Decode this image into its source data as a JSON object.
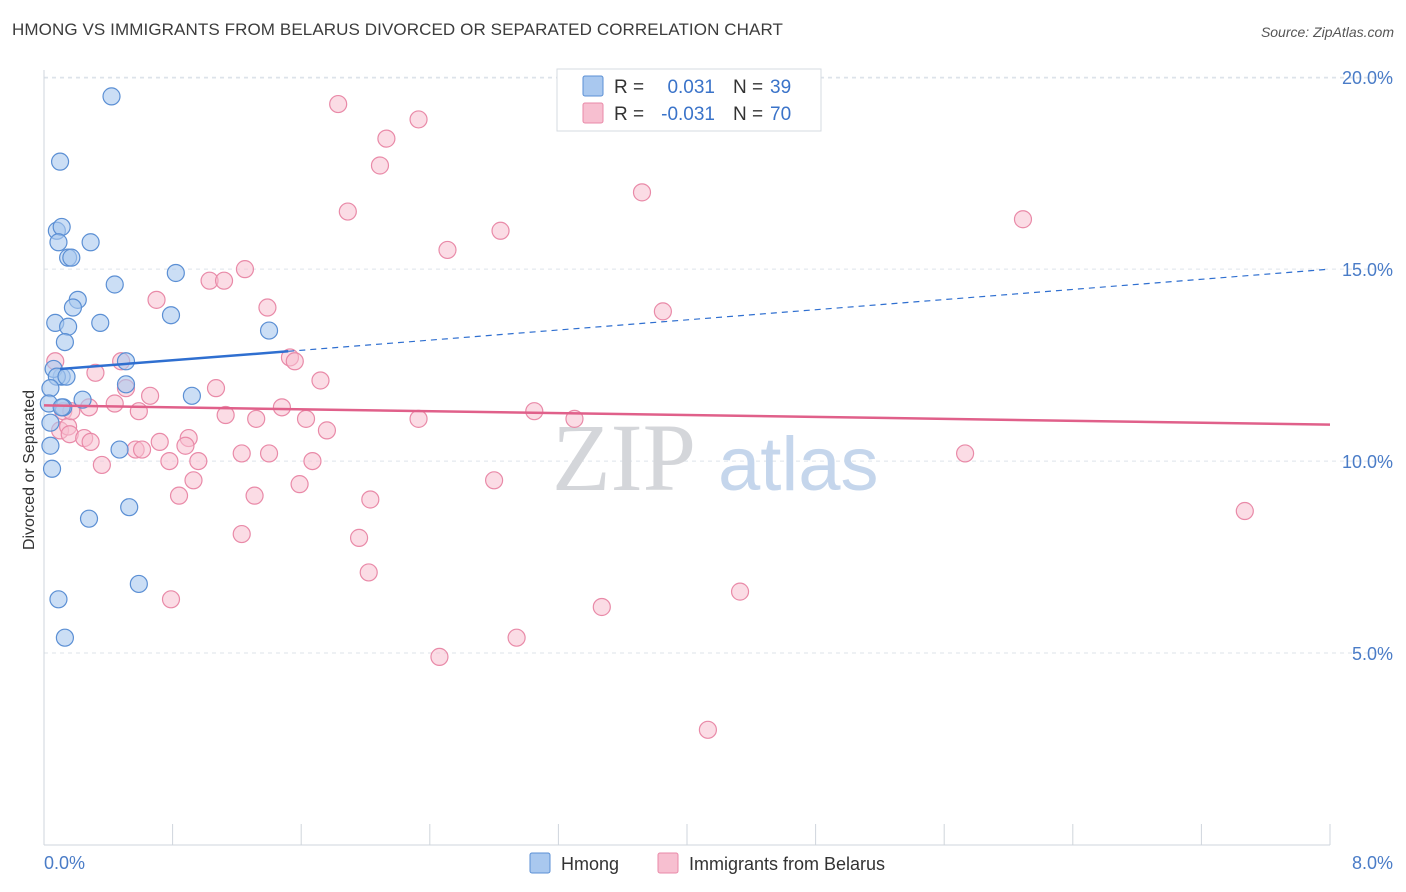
{
  "title": "HMONG VS IMMIGRANTS FROM BELARUS DIVORCED OR SEPARATED CORRELATION CHART",
  "source": "Source: ZipAtlas.com",
  "watermark": {
    "zip": "ZIP",
    "atlas": "atlas"
  },
  "colors": {
    "blue_fill": "#a9c8ef",
    "blue_stroke": "#5b8fd4",
    "blue_line": "#2f6fd0",
    "pink_fill": "#f7bfd0",
    "pink_stroke": "#e98aa8",
    "pink_line": "#e0608a",
    "grid": "#dde3ea",
    "axis_label": "#4a7cc7"
  },
  "legend": {
    "r_label": "R =",
    "n_label": "N =",
    "rows": [
      {
        "r": "0.031",
        "n": "39"
      },
      {
        "r": "-0.031",
        "n": "70"
      }
    ]
  },
  "chart_data": {
    "type": "scatter",
    "title": "HMONG VS IMMIGRANTS FROM BELARUS DIVORCED OR SEPARATED CORRELATION CHART",
    "xlabel": "",
    "ylabel": "Divorced or Separated",
    "xlim": [
      0,
      8
    ],
    "ylim": [
      0,
      20.5
    ],
    "x_tick_labels": {
      "min": "0.0%",
      "max": "8.0%"
    },
    "y_ticks": [
      {
        "value": 5,
        "label": "5.0%"
      },
      {
        "value": 10,
        "label": "10.0%"
      },
      {
        "value": 15,
        "label": "15.0%"
      },
      {
        "value": 20,
        "label": "20.0%"
      }
    ],
    "grid": true,
    "series": [
      {
        "name": "Hmong",
        "r": 0.031,
        "n": 39,
        "trend": {
          "x0": 0.1,
          "y0": 12.4,
          "x1": 1.52,
          "y1": 12.86,
          "dash_to_x": 8.0,
          "dash_to_y": 15.0
        },
        "points": [
          [
            0.42,
            19.5
          ],
          [
            0.1,
            17.8
          ],
          [
            0.08,
            16.0
          ],
          [
            0.11,
            16.1
          ],
          [
            0.09,
            15.7
          ],
          [
            0.29,
            15.7
          ],
          [
            0.15,
            15.3
          ],
          [
            0.17,
            15.3
          ],
          [
            0.82,
            14.9
          ],
          [
            0.44,
            14.6
          ],
          [
            0.21,
            14.2
          ],
          [
            0.18,
            14.0
          ],
          [
            0.79,
            13.8
          ],
          [
            0.07,
            13.6
          ],
          [
            0.15,
            13.5
          ],
          [
            0.35,
            13.6
          ],
          [
            1.4,
            13.4
          ],
          [
            0.13,
            13.1
          ],
          [
            0.11,
            12.2
          ],
          [
            0.51,
            12.6
          ],
          [
            0.06,
            12.4
          ],
          [
            0.08,
            12.2
          ],
          [
            0.14,
            12.2
          ],
          [
            0.51,
            12.0
          ],
          [
            0.04,
            11.9
          ],
          [
            0.24,
            11.6
          ],
          [
            0.92,
            11.7
          ],
          [
            0.03,
            11.5
          ],
          [
            0.12,
            11.4
          ],
          [
            0.04,
            11.0
          ],
          [
            0.11,
            11.4
          ],
          [
            0.47,
            10.3
          ],
          [
            0.04,
            10.4
          ],
          [
            0.05,
            9.8
          ],
          [
            0.53,
            8.8
          ],
          [
            0.28,
            8.5
          ],
          [
            0.59,
            6.8
          ],
          [
            0.09,
            6.4
          ],
          [
            0.13,
            5.4
          ]
        ]
      },
      {
        "name": "Immigrants from Belarus",
        "r": -0.031,
        "n": 70,
        "trend": {
          "x0": 0.0,
          "y0": 11.45,
          "x1": 8.0,
          "y1": 10.95
        },
        "points": [
          [
            1.83,
            19.3
          ],
          [
            2.33,
            18.9
          ],
          [
            2.13,
            18.4
          ],
          [
            2.09,
            17.7
          ],
          [
            3.72,
            17.0
          ],
          [
            1.89,
            16.5
          ],
          [
            6.09,
            16.3
          ],
          [
            2.84,
            16.0
          ],
          [
            2.51,
            15.5
          ],
          [
            1.25,
            15.0
          ],
          [
            1.03,
            14.7
          ],
          [
            1.12,
            14.7
          ],
          [
            0.7,
            14.2
          ],
          [
            1.39,
            14.0
          ],
          [
            3.85,
            13.9
          ],
          [
            0.07,
            12.6
          ],
          [
            1.53,
            12.7
          ],
          [
            1.56,
            12.6
          ],
          [
            0.32,
            12.3
          ],
          [
            0.48,
            12.6
          ],
          [
            1.72,
            12.1
          ],
          [
            1.07,
            11.9
          ],
          [
            0.51,
            11.9
          ],
          [
            0.66,
            11.7
          ],
          [
            0.44,
            11.5
          ],
          [
            0.28,
            11.4
          ],
          [
            0.59,
            11.3
          ],
          [
            0.12,
            11.3
          ],
          [
            1.48,
            11.4
          ],
          [
            1.63,
            11.1
          ],
          [
            3.05,
            11.3
          ],
          [
            1.13,
            11.2
          ],
          [
            1.32,
            11.1
          ],
          [
            2.33,
            11.1
          ],
          [
            3.3,
            11.1
          ],
          [
            0.1,
            10.8
          ],
          [
            0.15,
            10.9
          ],
          [
            0.16,
            10.7
          ],
          [
            1.76,
            10.8
          ],
          [
            0.9,
            10.6
          ],
          [
            0.25,
            10.6
          ],
          [
            0.29,
            10.5
          ],
          [
            0.72,
            10.5
          ],
          [
            0.88,
            10.4
          ],
          [
            0.57,
            10.3
          ],
          [
            0.61,
            10.3
          ],
          [
            1.23,
            10.2
          ],
          [
            1.4,
            10.2
          ],
          [
            0.78,
            10.0
          ],
          [
            0.96,
            10.0
          ],
          [
            1.67,
            10.0
          ],
          [
            0.36,
            9.9
          ],
          [
            5.73,
            10.2
          ],
          [
            2.8,
            9.5
          ],
          [
            0.93,
            9.5
          ],
          [
            1.59,
            9.4
          ],
          [
            0.84,
            9.1
          ],
          [
            1.31,
            9.1
          ],
          [
            2.03,
            9.0
          ],
          [
            7.47,
            8.7
          ],
          [
            1.23,
            8.1
          ],
          [
            1.96,
            8.0
          ],
          [
            2.02,
            7.1
          ],
          [
            4.33,
            6.6
          ],
          [
            0.79,
            6.4
          ],
          [
            3.47,
            6.2
          ],
          [
            2.94,
            5.4
          ],
          [
            2.46,
            4.9
          ],
          [
            4.13,
            3.0
          ],
          [
            0.17,
            11.3
          ]
        ]
      }
    ]
  }
}
